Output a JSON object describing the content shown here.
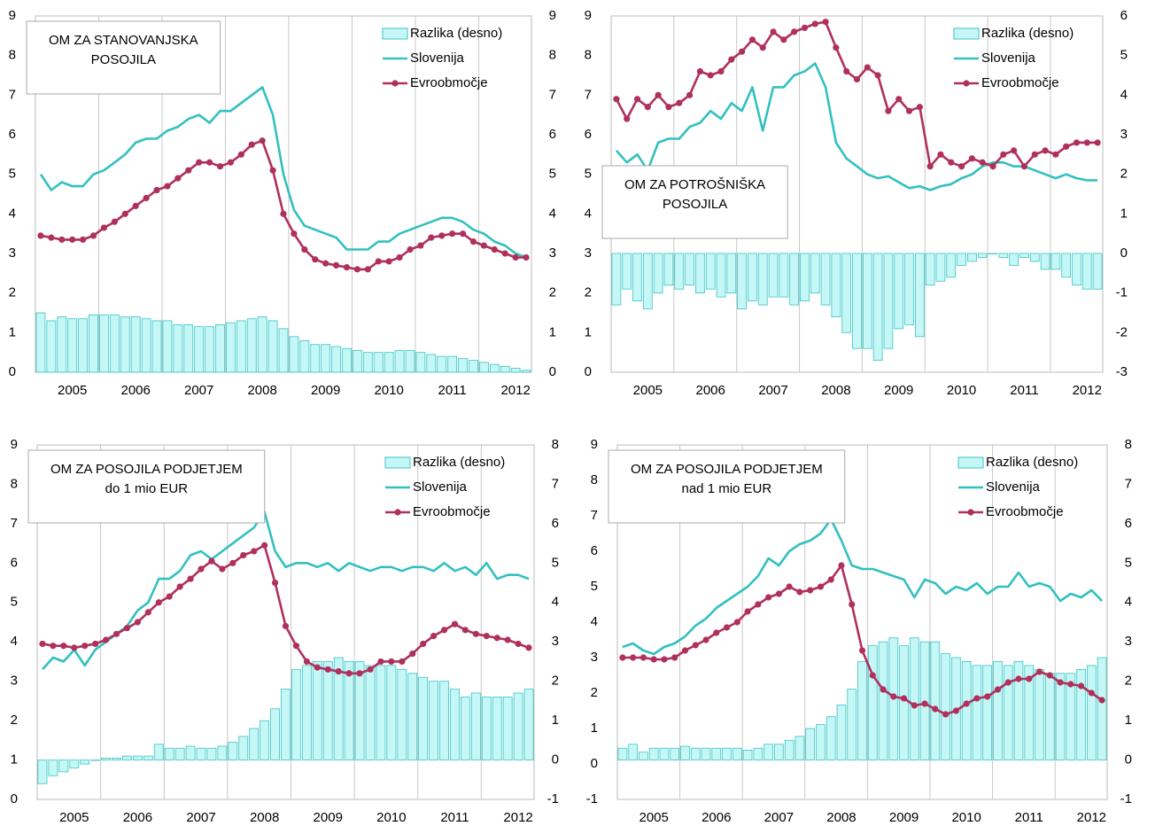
{
  "chart_data": [
    {
      "type": "combo",
      "title": [
        "OM ZA STANOVANJSKA",
        "POSOJILA"
      ],
      "title_position": "upper left",
      "legend": "upper right",
      "categories": [
        null,
        null,
        null,
        "2005",
        null,
        null,
        null,
        null,
        null,
        "2006",
        null,
        null,
        null,
        null,
        null,
        "2007",
        null,
        null,
        null,
        null,
        null,
        "2008",
        null,
        null,
        null,
        null,
        null,
        "2009",
        null,
        null,
        null,
        null,
        null,
        "2010",
        null,
        null,
        null,
        null,
        null,
        "2011",
        null,
        null,
        null,
        null,
        null,
        "2012",
        null
      ],
      "ylim": [
        0,
        9
      ],
      "yticks": [
        0,
        1,
        2,
        3,
        4,
        5,
        6,
        7,
        8,
        9
      ],
      "y2lim": [
        0,
        9
      ],
      "y2ticks": [
        0,
        1,
        2,
        3,
        4,
        5,
        6,
        7,
        8,
        9
      ],
      "series": [
        {
          "name": "Razlika (desno)",
          "type": "bar",
          "axis": "y2",
          "color": "#c6f7f7",
          "values": [
            1.5,
            1.3,
            1.4,
            1.35,
            1.35,
            1.45,
            1.45,
            1.45,
            1.4,
            1.4,
            1.35,
            1.3,
            1.3,
            1.2,
            1.2,
            1.15,
            1.15,
            1.2,
            1.25,
            1.3,
            1.35,
            1.4,
            1.3,
            1.1,
            0.9,
            0.8,
            0.7,
            0.7,
            0.65,
            0.6,
            0.55,
            0.5,
            0.5,
            0.5,
            0.55,
            0.55,
            0.5,
            0.45,
            0.4,
            0.4,
            0.35,
            0.3,
            0.25,
            0.2,
            0.15,
            0.1,
            0.05
          ]
        },
        {
          "name": "Slovenija",
          "type": "line",
          "color": "#33c0c0",
          "values": [
            5.0,
            4.6,
            4.8,
            4.7,
            4.7,
            5.0,
            5.1,
            5.3,
            5.5,
            5.8,
            5.9,
            5.9,
            6.1,
            6.2,
            6.4,
            6.5,
            6.3,
            6.6,
            6.6,
            6.8,
            7.0,
            7.2,
            6.5,
            5.0,
            4.1,
            3.7,
            3.6,
            3.5,
            3.4,
            3.1,
            3.1,
            3.1,
            3.3,
            3.3,
            3.5,
            3.6,
            3.7,
            3.8,
            3.9,
            3.9,
            3.8,
            3.6,
            3.5,
            3.3,
            3.2,
            3.0,
            2.9
          ]
        },
        {
          "name": "Evroobmočje",
          "type": "line",
          "markers": true,
          "color": "#b0305c",
          "values": [
            3.45,
            3.4,
            3.35,
            3.35,
            3.35,
            3.45,
            3.65,
            3.8,
            4.0,
            4.2,
            4.4,
            4.6,
            4.7,
            4.9,
            5.1,
            5.3,
            5.3,
            5.2,
            5.3,
            5.5,
            5.75,
            5.85,
            5.1,
            4.0,
            3.5,
            3.1,
            2.85,
            2.75,
            2.7,
            2.65,
            2.6,
            2.6,
            2.8,
            2.8,
            2.9,
            3.1,
            3.2,
            3.4,
            3.45,
            3.5,
            3.5,
            3.3,
            3.2,
            3.1,
            3.0,
            2.9,
            2.9
          ]
        }
      ]
    },
    {
      "type": "combo",
      "title": [
        "OM ZA POTROŠNIŠKA",
        "POSOJILA"
      ],
      "title_position": "center left",
      "legend": "upper right",
      "categories": [
        null,
        null,
        null,
        "2005",
        null,
        null,
        null,
        null,
        null,
        "2006",
        null,
        null,
        null,
        null,
        null,
        "2007",
        null,
        null,
        null,
        null,
        null,
        "2008",
        null,
        null,
        null,
        null,
        null,
        "2009",
        null,
        null,
        null,
        null,
        null,
        "2010",
        null,
        null,
        null,
        null,
        null,
        "2011",
        null,
        null,
        null,
        null,
        null,
        "2012",
        null
      ],
      "ylim": [
        0,
        9
      ],
      "yticks": [
        0,
        1,
        2,
        3,
        4,
        5,
        6,
        7,
        8,
        9
      ],
      "y2lim": [
        -3,
        6
      ],
      "y2ticks": [
        -3,
        -2,
        -1,
        0,
        1,
        2,
        3,
        4,
        5,
        6
      ],
      "series": [
        {
          "name": "Razlika (desno)",
          "type": "bar",
          "axis": "y2",
          "color": "#c6f7f7",
          "values": [
            -1.3,
            -0.9,
            -1.2,
            -1.4,
            -1.0,
            -0.8,
            -0.9,
            -0.8,
            -1.0,
            -0.9,
            -1.1,
            -1.0,
            -1.4,
            -1.2,
            -1.3,
            -1.1,
            -1.1,
            -1.3,
            -1.2,
            -1.0,
            -1.3,
            -1.6,
            -2.0,
            -2.4,
            -2.4,
            -2.7,
            -2.4,
            -1.9,
            -1.8,
            -2.1,
            -0.8,
            -0.7,
            -0.6,
            -0.3,
            -0.2,
            -0.1,
            0.0,
            -0.1,
            -0.3,
            -0.1,
            -0.2,
            -0.4,
            -0.4,
            -0.6,
            -0.8,
            -0.9,
            -0.9
          ]
        },
        {
          "name": "Slovenija",
          "type": "line",
          "color": "#33c0c0",
          "values": [
            5.6,
            5.3,
            5.5,
            5.1,
            5.8,
            5.9,
            5.9,
            6.2,
            6.3,
            6.6,
            6.4,
            6.8,
            6.6,
            7.2,
            6.1,
            7.2,
            7.2,
            7.5,
            7.6,
            7.8,
            7.2,
            5.8,
            5.4,
            5.2,
            5.0,
            4.9,
            4.95,
            4.8,
            4.65,
            4.7,
            4.6,
            4.7,
            4.75,
            4.9,
            5.0,
            5.2,
            5.3,
            5.3,
            5.2,
            5.2,
            5.1,
            5.0,
            4.9,
            5.0,
            4.9,
            4.85,
            4.85
          ]
        },
        {
          "name": "Evroobmočje",
          "type": "line",
          "markers": true,
          "color": "#b0305c",
          "values": [
            6.9,
            6.4,
            6.9,
            6.7,
            7.0,
            6.7,
            6.8,
            7.0,
            7.6,
            7.5,
            7.6,
            7.9,
            8.1,
            8.4,
            8.2,
            8.6,
            8.4,
            8.6,
            8.7,
            8.8,
            8.85,
            8.2,
            7.6,
            7.4,
            7.7,
            7.5,
            6.6,
            6.9,
            6.6,
            6.7,
            5.2,
            5.5,
            5.3,
            5.2,
            5.4,
            5.3,
            5.2,
            5.5,
            5.6,
            5.2,
            5.5,
            5.6,
            5.5,
            5.7,
            5.8,
            5.8,
            5.8
          ]
        }
      ]
    },
    {
      "type": "combo",
      "title": [
        "OM ZA POSOJILA PODJETJEM",
        "do 1 mio EUR"
      ],
      "title_position": "upper left",
      "legend": "upper right",
      "categories": [
        null,
        null,
        null,
        "2005",
        null,
        null,
        null,
        null,
        null,
        "2006",
        null,
        null,
        null,
        null,
        null,
        "2007",
        null,
        null,
        null,
        null,
        null,
        "2008",
        null,
        null,
        null,
        null,
        null,
        "2009",
        null,
        null,
        null,
        null,
        null,
        "2010",
        null,
        null,
        null,
        null,
        null,
        "2011",
        null,
        null,
        null,
        null,
        null,
        "2012",
        null
      ],
      "ylim": [
        0,
        9
      ],
      "yticks": [
        0,
        1,
        2,
        3,
        4,
        5,
        6,
        7,
        8,
        9
      ],
      "y2lim": [
        -1,
        8
      ],
      "y2ticks": [
        -1,
        0,
        1,
        2,
        3,
        4,
        5,
        6,
        7,
        8
      ],
      "series": [
        {
          "name": "Razlika (desno)",
          "type": "bar",
          "axis": "y2",
          "color": "#c6f7f7",
          "values": [
            -0.6,
            -0.4,
            -0.3,
            -0.2,
            -0.1,
            0.0,
            0.05,
            0.05,
            0.1,
            0.1,
            0.1,
            0.4,
            0.3,
            0.3,
            0.35,
            0.3,
            0.3,
            0.35,
            0.45,
            0.6,
            0.8,
            1.0,
            1.3,
            1.8,
            2.3,
            2.4,
            2.5,
            2.5,
            2.6,
            2.5,
            2.5,
            2.4,
            2.4,
            2.4,
            2.3,
            2.2,
            2.1,
            2.0,
            2.0,
            1.8,
            1.6,
            1.7,
            1.6,
            1.6,
            1.6,
            1.7,
            1.8
          ]
        },
        {
          "name": "Slovenija",
          "type": "line",
          "color": "#33c0c0",
          "values": [
            3.3,
            3.6,
            3.5,
            3.8,
            3.4,
            3.8,
            4.0,
            4.2,
            4.4,
            4.8,
            5.0,
            5.6,
            5.6,
            5.8,
            6.2,
            6.3,
            6.1,
            6.3,
            6.5,
            6.7,
            6.9,
            7.3,
            6.3,
            5.9,
            6.0,
            6.0,
            5.9,
            6.0,
            5.8,
            6.0,
            5.9,
            5.8,
            5.9,
            5.9,
            5.8,
            5.9,
            5.9,
            5.8,
            6.0,
            5.8,
            5.9,
            5.7,
            6.0,
            5.6,
            5.7,
            5.7,
            5.6
          ]
        },
        {
          "name": "Evroobmočje",
          "type": "line",
          "markers": true,
          "color": "#b0305c",
          "values": [
            3.95,
            3.9,
            3.9,
            3.85,
            3.9,
            3.95,
            4.05,
            4.2,
            4.35,
            4.5,
            4.75,
            5.0,
            5.15,
            5.4,
            5.6,
            5.85,
            6.05,
            5.85,
            6.0,
            6.2,
            6.3,
            6.45,
            5.5,
            4.4,
            3.9,
            3.5,
            3.35,
            3.3,
            3.25,
            3.2,
            3.2,
            3.3,
            3.5,
            3.5,
            3.5,
            3.7,
            3.95,
            4.15,
            4.3,
            4.45,
            4.3,
            4.2,
            4.15,
            4.1,
            4.05,
            3.95,
            3.85
          ]
        }
      ]
    },
    {
      "type": "combo",
      "title": [
        "OM ZA POSOJILA PODJETJEM",
        "nad 1 mio EUR"
      ],
      "title_position": "upper left",
      "legend": "upper right",
      "categories": [
        null,
        null,
        null,
        "2005",
        null,
        null,
        null,
        null,
        null,
        "2006",
        null,
        null,
        null,
        null,
        null,
        "2007",
        null,
        null,
        null,
        null,
        null,
        "2008",
        null,
        null,
        null,
        null,
        null,
        "2009",
        null,
        null,
        null,
        null,
        null,
        "2010",
        null,
        null,
        null,
        null,
        null,
        "2011",
        null,
        null,
        null,
        null,
        null,
        "2012",
        null
      ],
      "ylim": [
        -1,
        9
      ],
      "yticks": [
        -1,
        0,
        1,
        2,
        3,
        4,
        5,
        6,
        7,
        8,
        9
      ],
      "y2lim": [
        -1,
        8
      ],
      "y2ticks": [
        -1,
        0,
        1,
        2,
        3,
        4,
        5,
        6,
        7,
        8
      ],
      "series": [
        {
          "name": "Razlika (desno)",
          "type": "bar",
          "axis": "y2",
          "color": "#c6f7f7",
          "values": [
            0.3,
            0.4,
            0.2,
            0.3,
            0.3,
            0.3,
            0.35,
            0.3,
            0.3,
            0.3,
            0.3,
            0.3,
            0.25,
            0.3,
            0.4,
            0.4,
            0.5,
            0.6,
            0.8,
            0.9,
            1.1,
            1.4,
            1.8,
            2.5,
            2.9,
            3.0,
            3.1,
            2.9,
            3.1,
            3.0,
            3.0,
            2.7,
            2.6,
            2.5,
            2.4,
            2.4,
            2.5,
            2.4,
            2.5,
            2.4,
            2.3,
            2.2,
            2.2,
            2.2,
            2.3,
            2.4,
            2.6
          ]
        },
        {
          "name": "Slovenija",
          "type": "line",
          "color": "#33c0c0",
          "values": [
            3.3,
            3.4,
            3.2,
            3.1,
            3.3,
            3.4,
            3.6,
            3.9,
            4.1,
            4.4,
            4.6,
            4.8,
            5.0,
            5.3,
            5.8,
            5.6,
            6.0,
            6.2,
            6.3,
            6.5,
            6.9,
            6.3,
            5.6,
            5.5,
            5.5,
            5.4,
            5.3,
            5.2,
            4.7,
            5.2,
            5.1,
            4.8,
            5.0,
            4.9,
            5.1,
            4.8,
            5.0,
            5.0,
            5.4,
            5.0,
            5.1,
            5.0,
            4.6,
            4.8,
            4.7,
            4.9,
            4.6
          ]
        },
        {
          "name": "Evroobmočje",
          "type": "line",
          "markers": true,
          "color": "#b0305c",
          "values": [
            3.0,
            3.0,
            3.0,
            2.95,
            2.95,
            3.0,
            3.2,
            3.35,
            3.5,
            3.7,
            3.85,
            4.0,
            4.3,
            4.5,
            4.7,
            4.8,
            5.0,
            4.85,
            4.9,
            5.0,
            5.2,
            5.6,
            4.5,
            3.2,
            2.5,
            2.1,
            1.9,
            1.85,
            1.65,
            1.7,
            1.55,
            1.4,
            1.5,
            1.7,
            1.85,
            1.9,
            2.1,
            2.3,
            2.4,
            2.4,
            2.6,
            2.5,
            2.3,
            2.25,
            2.2,
            2.0,
            1.8
          ]
        }
      ]
    }
  ]
}
